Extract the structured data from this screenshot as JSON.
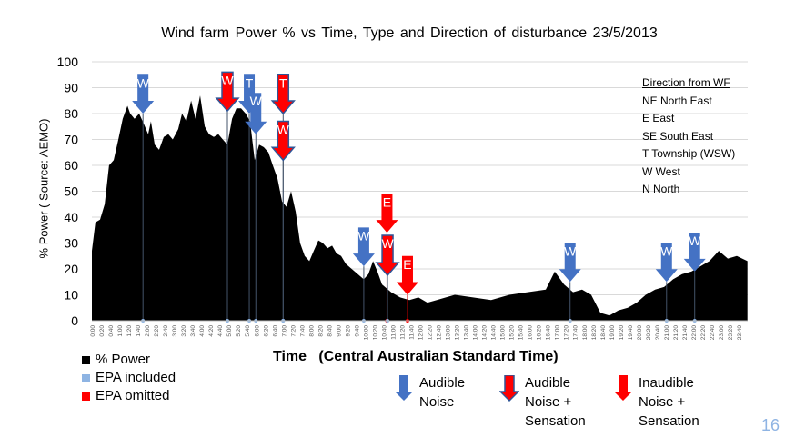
{
  "colors": {
    "blue": "#4472c4",
    "red": "#ff0000",
    "area": "#000000",
    "grid": "#d9d9d9",
    "epa_included": "#8eb4e3"
  },
  "chart_data": {
    "type": "area",
    "title": "Wind farm Power %  vs  Time,  Type and Direction of disturbance  23/5/2013",
    "xlabel": "Time   (Central Australian Standard Time)",
    "ylabel": "% Power ( Source: AEMO)",
    "ylim": [
      0,
      100
    ],
    "xlim_hours": [
      0,
      24
    ],
    "grid": true,
    "y_ticks": [
      "0",
      "10",
      "20",
      "30",
      "40",
      "50",
      "60",
      "70",
      "80",
      "90",
      "100"
    ],
    "x_ticks": [
      "0:00",
      "0:20",
      "0:40",
      "1:00",
      "1:20",
      "1:40",
      "2:00",
      "2:20",
      "2:40",
      "3:00",
      "3:20",
      "3:40",
      "4:00",
      "4:20",
      "4:40",
      "5:00",
      "5:20",
      "5:40",
      "6:00",
      "6:20",
      "6:40",
      "7:00",
      "7:20",
      "7:40",
      "8:00",
      "8:20",
      "8:40",
      "9:00",
      "9:20",
      "9:40",
      "10:00",
      "10:20",
      "10:40",
      "11:00",
      "11:20",
      "11:40",
      "12:00",
      "12:20",
      "12:40",
      "13:00",
      "13:20",
      "13:40",
      "14:00",
      "14:20",
      "14:40",
      "15:00",
      "15:20",
      "15:40",
      "16:00",
      "16:20",
      "16:40",
      "17:00",
      "17:20",
      "17:40",
      "18:00",
      "18:20",
      "18:40",
      "19:00",
      "19:20",
      "19:40",
      "20:00",
      "20:20",
      "20:40",
      "21:00",
      "21:20",
      "21:40",
      "22:00",
      "22:20",
      "22:40",
      "23:00",
      "23:20",
      "23:40"
    ],
    "series": [
      {
        "name": "% Power",
        "x_hours": [
          0,
          0.13,
          0.3,
          0.47,
          0.63,
          0.8,
          0.97,
          1.13,
          1.3,
          1.4,
          1.56,
          1.73,
          1.9,
          2.06,
          2.16,
          2.3,
          2.46,
          2.63,
          2.8,
          2.96,
          3.16,
          3.3,
          3.46,
          3.63,
          3.79,
          3.96,
          4.13,
          4.29,
          4.46,
          4.63,
          4.79,
          4.96,
          5.13,
          5.29,
          5.46,
          5.63,
          5.79,
          5.96,
          6.12,
          6.29,
          6.46,
          6.62,
          6.79,
          6.96,
          7.12,
          7.29,
          7.46,
          7.62,
          7.79,
          7.96,
          8.12,
          8.29,
          8.45,
          8.62,
          8.79,
          8.95,
          9.12,
          9.29,
          9.62,
          9.95,
          10.12,
          10.29,
          10.45,
          10.62,
          10.95,
          11.28,
          11.62,
          11.95,
          12.28,
          12.62,
          13.28,
          13.95,
          14.61,
          15.28,
          15.94,
          16.61,
          16.94,
          17.28,
          17.61,
          17.94,
          18.27,
          18.61,
          18.94,
          19.27,
          19.61,
          19.94,
          20.27,
          20.61,
          20.94,
          21.27,
          21.6,
          21.94,
          22.27,
          22.6,
          22.94,
          23.27,
          23.6,
          23.99
        ],
        "values": [
          27,
          38,
          39,
          45,
          60,
          62,
          70,
          78,
          83,
          80,
          78,
          80,
          76,
          72,
          77,
          68,
          66,
          71,
          72,
          70,
          74,
          80,
          77,
          85,
          78,
          87,
          75,
          72,
          71,
          72,
          70,
          68,
          78,
          82,
          82,
          80,
          77,
          62,
          68,
          67,
          65,
          60,
          55,
          46,
          44,
          50,
          42,
          30,
          25,
          23,
          27,
          31,
          30,
          28,
          29,
          26,
          25,
          22,
          19,
          16,
          18,
          23,
          19,
          14,
          11,
          9,
          8,
          9,
          7,
          8,
          10,
          9,
          8,
          10,
          11,
          12,
          19,
          14,
          11,
          12,
          10,
          3,
          2,
          4,
          5,
          7,
          10,
          12,
          13,
          16,
          18,
          19,
          21,
          23,
          27,
          24,
          25,
          23
        ]
      }
    ],
    "legend": [
      {
        "label": "% Power",
        "color": "#000000"
      },
      {
        "label": "EPA included",
        "color": "#8eb4e3"
      },
      {
        "label": "EPA omitted",
        "color": "#ff0000"
      }
    ],
    "disturbances": [
      {
        "time_hours": 1.87,
        "letter": "W",
        "type": "audible",
        "tip_value": 80,
        "top_value": 95
      },
      {
        "time_hours": 4.96,
        "letter": "W",
        "type": "audible_sensation",
        "tip_value": 81,
        "top_value": 96
      },
      {
        "time_hours": 5.76,
        "letter": "T",
        "type": "audible",
        "tip_value": 80,
        "top_value": 95
      },
      {
        "time_hours": 6.0,
        "letter": "W",
        "type": "audible",
        "tip_value": 72,
        "top_value": 88
      },
      {
        "time_hours": 7.0,
        "letter": "T",
        "type": "audible_sensation",
        "tip_value": 80,
        "top_value": 95
      },
      {
        "time_hours": 7.0,
        "letter": "W",
        "type": "audible_sensation",
        "tip_value": 62,
        "top_value": 77
      },
      {
        "time_hours": 9.95,
        "letter": "W",
        "type": "audible",
        "tip_value": 21,
        "top_value": 36
      },
      {
        "time_hours": 10.8,
        "letter": "E",
        "type": "inaudible_sensation",
        "tip_value": 34,
        "top_value": 49
      },
      {
        "time_hours": 10.82,
        "letter": "W",
        "type": "audible_sensation",
        "tip_value": 17.5,
        "top_value": 33
      },
      {
        "time_hours": 11.55,
        "letter": "E",
        "type": "inaudible_sensation",
        "tip_value": 10,
        "top_value": 25
      },
      {
        "time_hours": 17.5,
        "letter": "W",
        "type": "audible",
        "tip_value": 15,
        "top_value": 30
      },
      {
        "time_hours": 21.03,
        "letter": "W",
        "type": "audible",
        "tip_value": 15,
        "top_value": 30
      },
      {
        "time_hours": 22.06,
        "letter": "W",
        "type": "audible",
        "tip_value": 19,
        "top_value": 34
      }
    ]
  },
  "direction_legend": {
    "title": "Direction from WF",
    "items": [
      "NE  North East",
      "E  East",
      "SE  South East",
      "T  Township (WSW)",
      "W  West",
      "N  North"
    ]
  },
  "arrow_legend": [
    {
      "line1": "Audible",
      "line2": "Noise",
      "line3": ""
    },
    {
      "line1": "Audible",
      "line2": "Noise  +",
      "line3": "Sensation"
    },
    {
      "line1": "Inaudible",
      "line2": "Noise  +",
      "line3": "Sensation"
    }
  ],
  "page_number": "16"
}
